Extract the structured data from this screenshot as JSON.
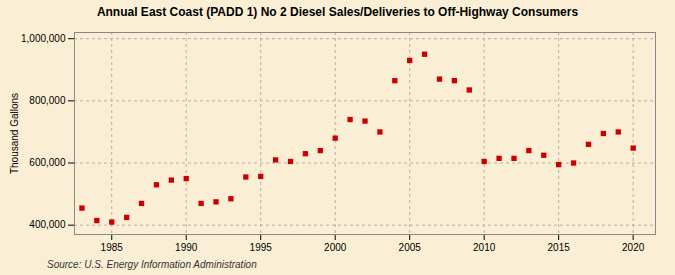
{
  "chart_data": {
    "type": "scatter",
    "title": "Annual East Coast (PADD 1) No 2 Diesel Sales/Deliveries to Off-Highway Consumers",
    "ylabel": "Thousand Gallons",
    "source": "Source: U.S. Energy Information Administration",
    "x": [
      1983,
      1984,
      1985,
      1986,
      1987,
      1988,
      1989,
      1990,
      1991,
      1992,
      1993,
      1994,
      1995,
      1996,
      1997,
      1998,
      1999,
      2000,
      2001,
      2002,
      2003,
      2004,
      2005,
      2006,
      2007,
      2008,
      2009,
      2010,
      2011,
      2012,
      2013,
      2014,
      2015,
      2016,
      2017,
      2018,
      2019,
      2020
    ],
    "values": [
      455000,
      415000,
      410000,
      425000,
      470000,
      530000,
      545000,
      550000,
      470000,
      475000,
      485000,
      555000,
      557000,
      610000,
      605000,
      630000,
      640000,
      680000,
      740000,
      735000,
      700000,
      865000,
      930000,
      950000,
      870000,
      865000,
      835000,
      605000,
      615000,
      615000,
      640000,
      625000,
      595000,
      600000,
      660000,
      695000,
      700000,
      648000
    ],
    "color": "#cc0000",
    "marker": "square",
    "xlim": [
      1982.5,
      2021.5
    ],
    "ylim": [
      370000,
      1020000
    ],
    "xticks": [
      1985,
      1990,
      1995,
      2000,
      2005,
      2010,
      2015,
      2020
    ],
    "yticks": [
      {
        "value": 400000,
        "label": "400,000"
      },
      {
        "value": 600000,
        "label": "600,000"
      },
      {
        "value": 800000,
        "label": "800,000"
      },
      {
        "value": 1000000,
        "label": "1,000,000"
      }
    ],
    "grid": true
  }
}
